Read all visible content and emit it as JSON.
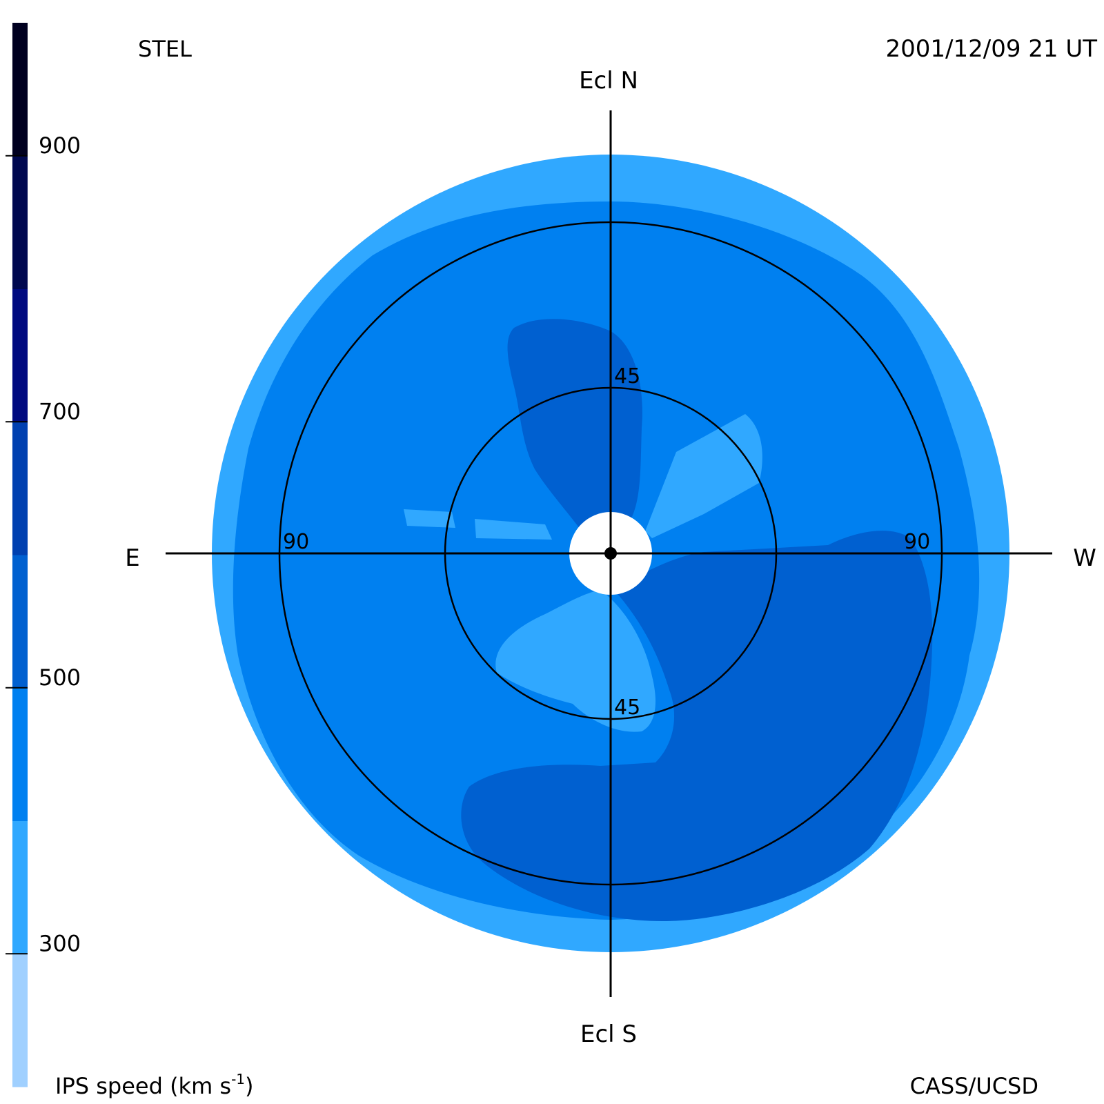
{
  "chart_data": {
    "type": "heatmap",
    "projection": "polar sky map (fisheye)",
    "title_left": "STEL",
    "title_right": "2001/12/09 21 UT",
    "credit": "CASS/UCSD",
    "directions": {
      "north": "Ecl N",
      "south": "Ecl S",
      "east": "E",
      "west": "W"
    },
    "elongation_rings": [
      {
        "value": 45,
        "labels": [
          "45",
          "45"
        ]
      },
      {
        "value": 90,
        "labels": [
          "90",
          "90"
        ]
      }
    ],
    "outer_elongation_limit": 110,
    "colorbar": {
      "label": "IPS speed (km s",
      "label_sup": "-1",
      "label_end": ")",
      "range": [
        200,
        1000
      ],
      "ticks": [
        300,
        500,
        700,
        900
      ],
      "tick_labels": [
        "300",
        "500",
        "700",
        "900"
      ],
      "levels": [
        {
          "from": 200,
          "to": 300,
          "color": "#a0d0ff"
        },
        {
          "from": 300,
          "to": 400,
          "color": "#30a8ff"
        },
        {
          "from": 400,
          "to": 500,
          "color": "#0080f0"
        },
        {
          "from": 500,
          "to": 600,
          "color": "#0060d0"
        },
        {
          "from": 600,
          "to": 700,
          "color": "#0040b0"
        },
        {
          "from": 700,
          "to": 800,
          "color": "#000a80"
        },
        {
          "from": 800,
          "to": 900,
          "color": "#000850"
        },
        {
          "from": 900,
          "to": 1000,
          "color": "#000020"
        }
      ]
    },
    "regions": [
      {
        "name": "outer ring",
        "speed_range": [
          300,
          400
        ],
        "color": "#30a8ff"
      },
      {
        "name": "main disk",
        "speed_range": [
          400,
          500
        ],
        "color": "#0080f0"
      },
      {
        "name": "north lobe",
        "speed_range": [
          500,
          600
        ],
        "color": "#0060d0"
      },
      {
        "name": "south-west lobe",
        "speed_range": [
          500,
          600
        ],
        "color": "#0060d0"
      },
      {
        "name": "north-west streamer",
        "speed_range": [
          300,
          400
        ],
        "color": "#30a8ff"
      },
      {
        "name": "south streamer",
        "speed_range": [
          300,
          400
        ],
        "color": "#30a8ff"
      },
      {
        "name": "east streamer",
        "speed_range": [
          300,
          400
        ],
        "color": "#30a8ff"
      }
    ]
  }
}
